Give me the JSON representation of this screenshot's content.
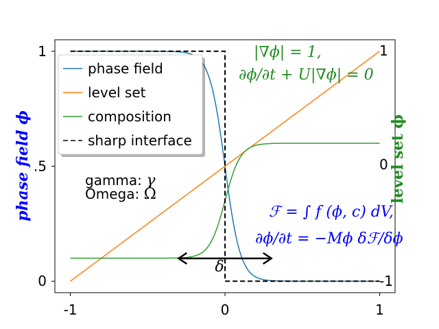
{
  "chart_data": {
    "type": "line",
    "title": "",
    "xlim": [
      -1.1,
      1.1
    ],
    "ylim": [
      -0.05,
      1.05
    ],
    "x_ticks": [
      -1,
      0,
      1
    ],
    "x_tick_labels": [
      "-1",
      "0",
      "1"
    ],
    "y_ticks": [
      0,
      0.5,
      1
    ],
    "y_tick_labels": [
      "0",
      ".5",
      "1"
    ],
    "ylabel": "phase field ϕ",
    "ylabel_color": "#0000ff",
    "right_ylabel": "level set ϕ",
    "right_ylabel_color": "#228b22",
    "right_ticks": [
      -1,
      0,
      1
    ],
    "right_tick_labels": [
      "-1",
      "0",
      "1"
    ],
    "series": [
      {
        "name": "phase field",
        "color": "#1f77b4",
        "kind": "tanh",
        "center": 0,
        "width": 0.1
      },
      {
        "name": "level set",
        "color": "#ff7f0e",
        "kind": "linear",
        "y_at_left": 0,
        "y_at_right": 1
      },
      {
        "name": "composition",
        "color": "#2ca02c",
        "kind": "tanh_rise",
        "base": 0.1,
        "top": 0.6,
        "center": 0,
        "width": 0.1
      },
      {
        "name": "sharp interface",
        "color": "#000000",
        "kind": "step",
        "x": [
          -1,
          0,
          0,
          1
        ],
        "y": [
          1,
          1,
          0,
          0
        ],
        "dashed": true
      }
    ],
    "annotations": {
      "gamma": {
        "text": "gamma: ",
        "symbol": "γ",
        "color": "#ff0000"
      },
      "omega": {
        "text": "Omega: ",
        "symbol": "Ω",
        "color": "#0000ff"
      },
      "eq_green_1": "|∇ϕ| = 1,",
      "eq_green_2": "∂ϕ/∂t + U|∇ϕ| = 0",
      "eq_blue_1": "ℱ = ∫ f (ϕ, c) dV,",
      "eq_blue_2": "∂ϕ/∂t = −Mϕ δℱ/δϕ",
      "delta": "δ",
      "delta_range": [
        -0.3,
        0.3
      ]
    }
  }
}
